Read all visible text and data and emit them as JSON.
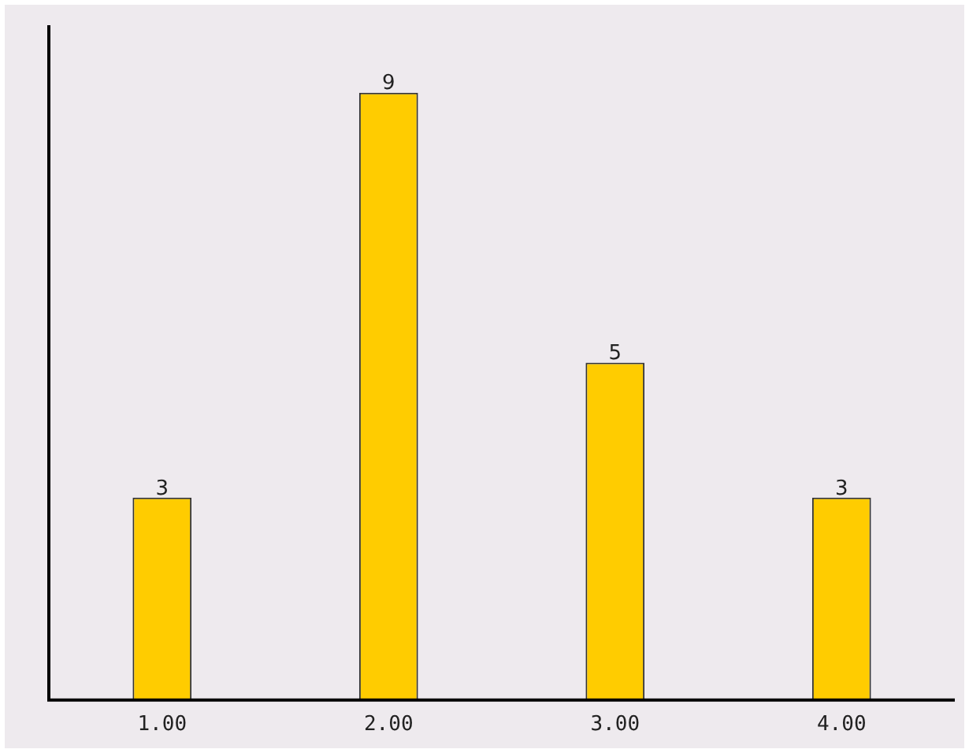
{
  "chart_data": {
    "type": "bar",
    "categories": [
      "1.00",
      "2.00",
      "3.00",
      "4.00"
    ],
    "values": [
      3,
      9,
      5,
      3
    ],
    "color": "#ffcc00",
    "ylim": [
      0,
      10
    ],
    "tick_labels": "x",
    "grid": false,
    "legend": false,
    "data_labels": true
  }
}
